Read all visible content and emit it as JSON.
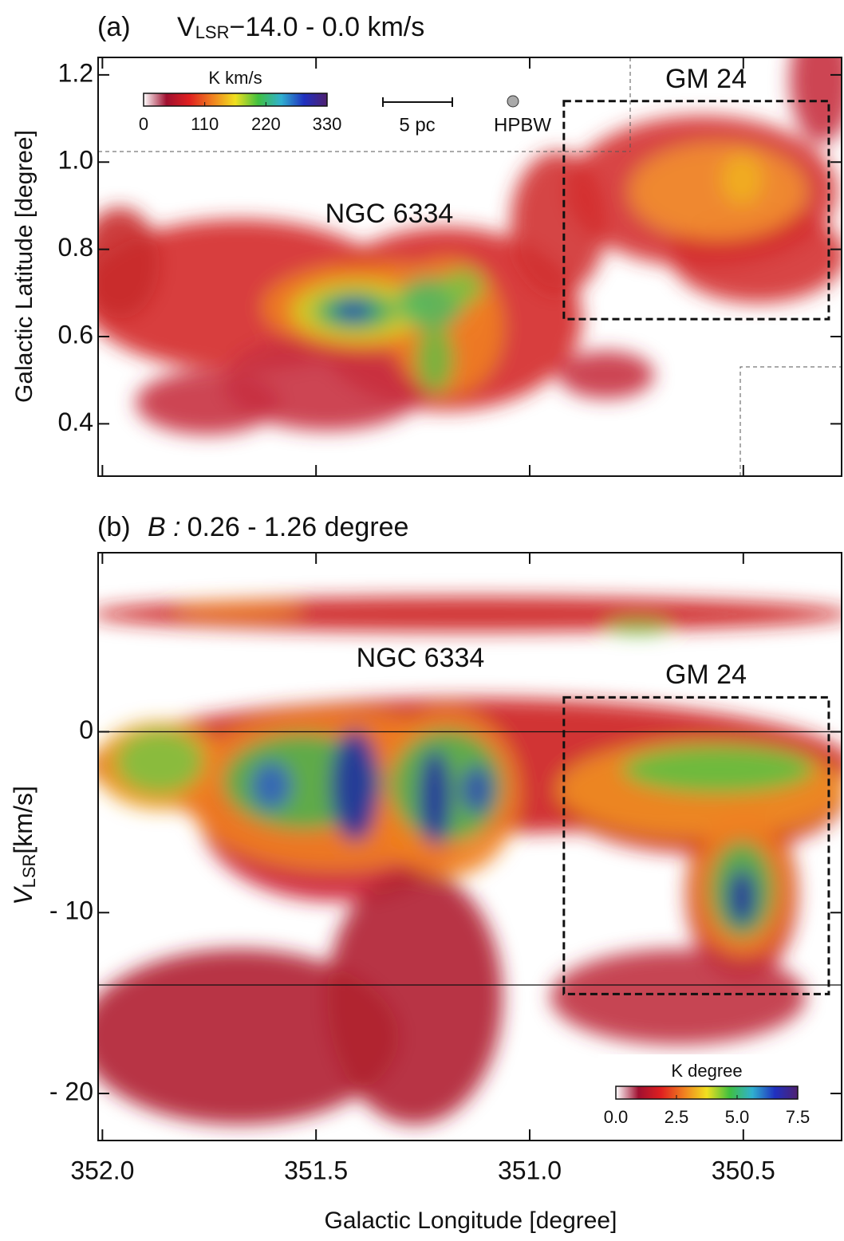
{
  "chart_data": [
    {
      "type": "map",
      "panel_label": "(a)",
      "title": {
        "symbol": "V",
        "subscript": "LSR",
        "text": "−14.0 - 0.0 km/s"
      },
      "ylabel": "Galactic Latitude [degree]",
      "xlim": [
        352.01,
        350.27
      ],
      "ylim": [
        0.28,
        1.24
      ],
      "yticks": [
        0.4,
        0.6,
        0.8,
        {
          "value": 1.0,
          "label": "1.0"
        },
        1.2
      ],
      "box": {
        "x": [
          350.92,
          350.3
        ],
        "y": [
          0.64,
          1.14
        ]
      },
      "colorbar": {
        "label": "K km/s",
        "lim": [
          0,
          330
        ],
        "ticks": [
          0,
          110,
          220,
          330
        ],
        "colors": [
          "#ffffff",
          "#a01030",
          "#e02020",
          "#f08020",
          "#f0e020",
          "#40c040",
          "#30b0d0",
          "#2030c0",
          "#502070"
        ]
      },
      "annotations": [
        "NGC 6334",
        "GM 24",
        "5 pc",
        "HPBW"
      ]
    },
    {
      "type": "lv",
      "panel_label": "(b)",
      "title": {
        "symbol": "B :",
        "text": "0.26 - 1.26 degree"
      },
      "ylabel": {
        "symbol": "V",
        "subscript": "LSR",
        "text": "[km/s]"
      },
      "xlabel": "Galactic Longitude [degree]",
      "xlim": [
        352.01,
        350.27
      ],
      "ylim": [
        -22.6,
        9.9
      ],
      "xticks": [
        {
          "value": 352.0,
          "label": "352.0"
        },
        351.5,
        {
          "value": 351.0,
          "label": "351.0"
        },
        350.5
      ],
      "yticks": [
        0,
        {
          "value": -10,
          "label": "- 10"
        },
        {
          "value": -20,
          "label": "- 20"
        }
      ],
      "hlines": [
        0,
        -14
      ],
      "box": {
        "x": [
          350.92,
          350.3
        ],
        "y": [
          -14.5,
          1.9
        ]
      },
      "colorbar": {
        "label": "K degree",
        "lim": [
          0,
          7.5
        ],
        "ticks": [
          {
            "value": 0,
            "label": "0.0"
          },
          2.5,
          {
            "value": 5,
            "label": "5.0"
          },
          7.5
        ],
        "colors": [
          "#ffffff",
          "#a01030",
          "#e02020",
          "#f08020",
          "#f0e020",
          "#40c040",
          "#30b0d0",
          "#2030c0",
          "#502070"
        ]
      },
      "annotations": [
        "NGC 6334",
        "GM 24"
      ]
    }
  ]
}
